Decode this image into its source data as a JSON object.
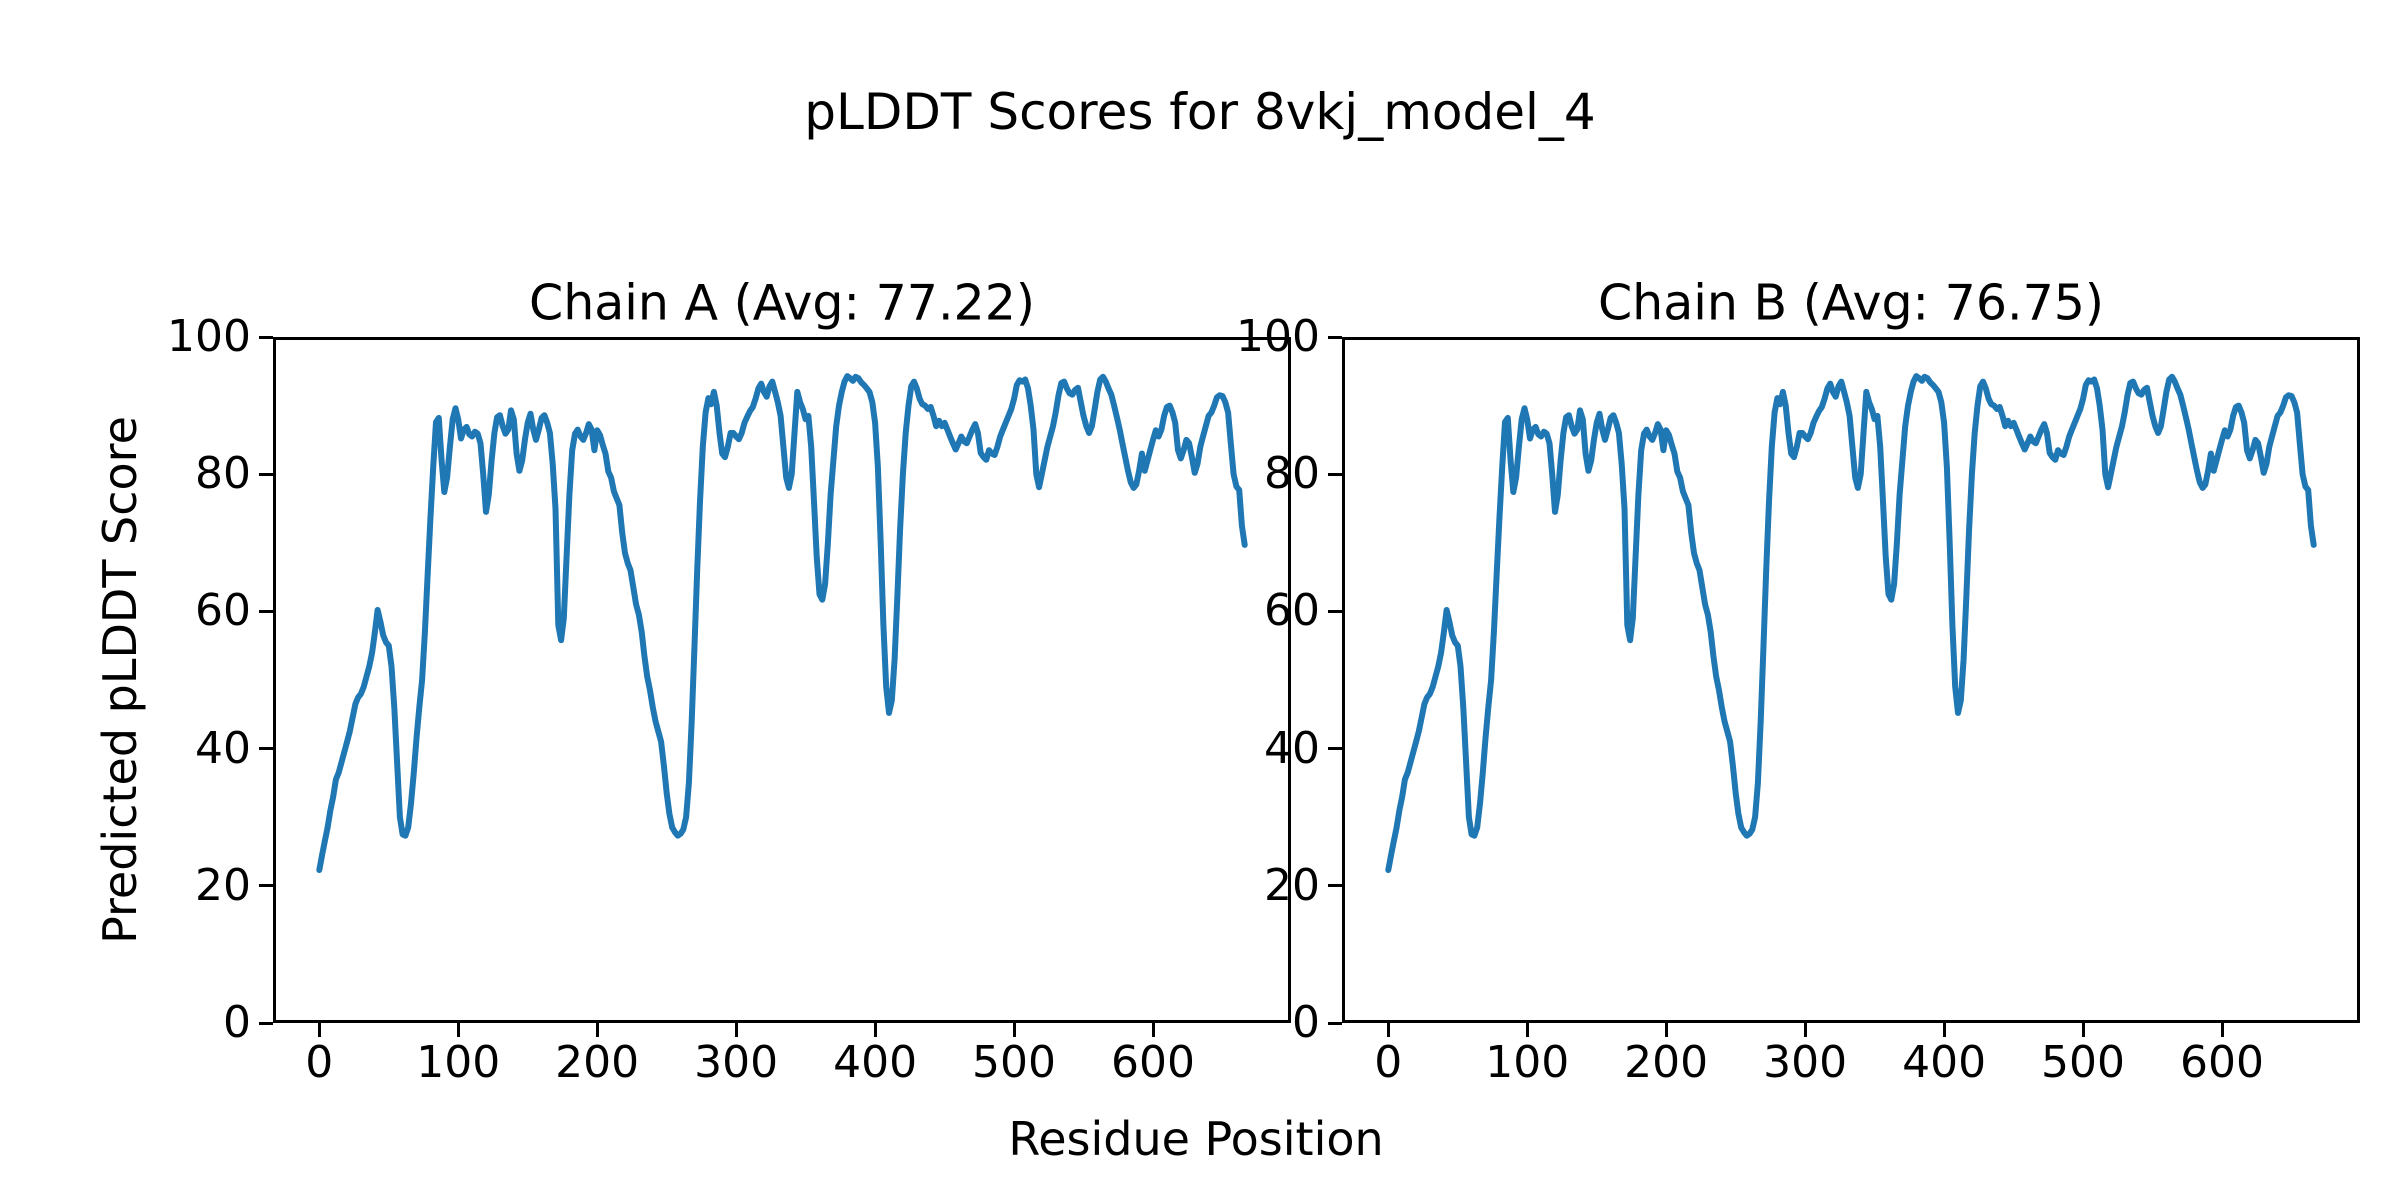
{
  "figure": {
    "title": "pLDDT Scores for 8vkj_model_4",
    "xlabel": "Residue Position",
    "ylabel": "Predicted pLDDT Score",
    "background": "#ffffff",
    "line_color": "#1f77b4",
    "spine_color": "#000000"
  },
  "chart_data": [
    {
      "type": "line",
      "title": "Chain A (Avg: 77.22)",
      "chain": "A",
      "avg_plddt": 77.22,
      "xlabel": "Residue Position",
      "ylabel": "Predicted pLDDT Score",
      "xlim": [
        -33.3,
        699.3
      ],
      "ylim": [
        0,
        100
      ],
      "xticks": [
        0,
        100,
        200,
        300,
        400,
        500,
        600
      ],
      "yticks": [
        0,
        20,
        40,
        60,
        80,
        100
      ],
      "grid": false,
      "legend": null,
      "line_color": "#1f77b4",
      "x_start": 0,
      "x_step": 2,
      "y": [
        22.3,
        24.5,
        26.5,
        28.5,
        31,
        33,
        35.5,
        36.5,
        38,
        39.5,
        41,
        42.5,
        44.5,
        46.5,
        47.5,
        48,
        49,
        50.5,
        52,
        54,
        57,
        60.2,
        58.5,
        56.5,
        55.5,
        55,
        52,
        46,
        38,
        30,
        27.5,
        27.3,
        28.5,
        32,
        36.5,
        41.5,
        46,
        50,
        57,
        65.5,
        73.5,
        81,
        87.6,
        88.2,
        82,
        77.4,
        79.5,
        84,
        88,
        89.6,
        88,
        85.2,
        86.5,
        86.9,
        85.8,
        85.5,
        86.2,
        85.9,
        84.5,
        80,
        74.5,
        77,
        82,
        86,
        88.3,
        88.6,
        87,
        85.9,
        86.5,
        89.3,
        88,
        83,
        80.5,
        82,
        85,
        87.5,
        88.8,
        86.5,
        85,
        86.5,
        88.2,
        88.6,
        87.5,
        86,
        81.5,
        75,
        58,
        55.8,
        59,
        68,
        77,
        83.5,
        85.9,
        86.5,
        85.5,
        85,
        86,
        87.3,
        86.5,
        83.5,
        86.4,
        85.7,
        84.3,
        83,
        80.4,
        79.5,
        77.5,
        76.5,
        75.5,
        71.5,
        68.5,
        67,
        66,
        63.5,
        61,
        59.5,
        57,
        53.5,
        50.5,
        48.5,
        46,
        44,
        42.5,
        41,
        37.5,
        33.5,
        30.5,
        28.5,
        27.8,
        27.3,
        27.6,
        28.2,
        30,
        35,
        44,
        55,
        66,
        76,
        84,
        89,
        91.1,
        90.2,
        92,
        90,
        86,
        83,
        82.5,
        84,
        86,
        86,
        85.5,
        85.1,
        86,
        87.5,
        88.4,
        89.2,
        89.8,
        91,
        92.5,
        93.2,
        92,
        91.3,
        92.8,
        93.5,
        92,
        90.5,
        88.5,
        84,
        79.5,
        78,
        80,
        86,
        92,
        90.5,
        89.5,
        88,
        88.5,
        84,
        76,
        68,
        62.5,
        61.7,
        64,
        70,
        77,
        82,
        87,
        90,
        92,
        93.5,
        94.3,
        94,
        93.6,
        94.2,
        94,
        93.4,
        93,
        92.5,
        92,
        90.5,
        87.5,
        81,
        70,
        58,
        49,
        45.2,
        47,
        53,
        62,
        72,
        80,
        86,
        90,
        92.8,
        93.5,
        92.5,
        91,
        90.2,
        90,
        89.5,
        89.8,
        88.5,
        87,
        87.8,
        87,
        87.5,
        86.5,
        85.5,
        84.5,
        83.6,
        84.5,
        85.5,
        84.8,
        84.5,
        85.5,
        86.5,
        87.3,
        86,
        83.1,
        82.5,
        82.1,
        83.5,
        83,
        82.8,
        84,
        85.5,
        86.5,
        87.5,
        88.5,
        89.5,
        91,
        93,
        93.7,
        93.5,
        93.8,
        92.5,
        90,
        86.5,
        80,
        78.1,
        80,
        82,
        84,
        85.5,
        87,
        89,
        91.5,
        93.3,
        93.5,
        92.5,
        91.8,
        91.6,
        92.3,
        92.6,
        90.5,
        88.5,
        87,
        86,
        87,
        89.5,
        92,
        93.8,
        94.2,
        93.5,
        92.5,
        91.6,
        90,
        88.3,
        86.5,
        84.5,
        82.5,
        80.5,
        78.8,
        78,
        78.5,
        80.5,
        83,
        80.5,
        82,
        83.5,
        85,
        86.4,
        85.5,
        86.5,
        88.5,
        89.8,
        90,
        89,
        87.5,
        83.5,
        82.3,
        83.5,
        85,
        84.5,
        82.5,
        80.2,
        81.5,
        84,
        85.5,
        87,
        88.5,
        89,
        90,
        91.2,
        91.5,
        91.4,
        90.5,
        89,
        84.5,
        80,
        78.2,
        77.7,
        72.5,
        69.7
      ]
    },
    {
      "type": "line",
      "title": "Chain B (Avg: 76.75)",
      "chain": "B",
      "avg_plddt": 76.75,
      "xlabel": "Residue Position",
      "ylabel": "Predicted pLDDT Score",
      "xlim": [
        -33.3,
        699.3
      ],
      "ylim": [
        0,
        100
      ],
      "xticks": [
        0,
        100,
        200,
        300,
        400,
        500,
        600
      ],
      "yticks": [
        0,
        20,
        40,
        60,
        80,
        100
      ],
      "grid": false,
      "legend": null,
      "line_color": "#1f77b4",
      "x_start": 0,
      "x_step": 2,
      "y": [
        22.3,
        24.5,
        26.5,
        28.5,
        31,
        33,
        35.5,
        36.5,
        38,
        39.5,
        41,
        42.5,
        44.5,
        46.5,
        47.5,
        48,
        49,
        50.5,
        52,
        54,
        57,
        60.2,
        58.5,
        56.5,
        55.5,
        55,
        52,
        46,
        38,
        30,
        27.5,
        27.3,
        28.5,
        32,
        36.5,
        41.5,
        46,
        50,
        57,
        65.5,
        73.5,
        81,
        87.6,
        88.2,
        82,
        77.4,
        79.5,
        84,
        88,
        89.6,
        88,
        85.2,
        86.5,
        86.9,
        85.8,
        85.5,
        86.2,
        85.9,
        84.5,
        80,
        74.5,
        77,
        82,
        86,
        88.3,
        88.6,
        87,
        85.9,
        86.5,
        89.3,
        88,
        83,
        80.5,
        82,
        85,
        87.5,
        88.8,
        86.5,
        85,
        86.5,
        88.2,
        88.6,
        87.5,
        86,
        81.5,
        75,
        58,
        55.8,
        59,
        68,
        77,
        83.5,
        85.9,
        86.5,
        85.5,
        85,
        86,
        87.3,
        86.5,
        83.5,
        86.4,
        85.7,
        84.3,
        83,
        80.4,
        79.5,
        77.5,
        76.5,
        75.5,
        71.5,
        68.5,
        67,
        66,
        63.5,
        61,
        59.5,
        57,
        53.5,
        50.5,
        48.5,
        46,
        44,
        42.5,
        41,
        37.5,
        33.5,
        30.5,
        28.5,
        27.8,
        27.3,
        27.6,
        28.2,
        30,
        35,
        44,
        55,
        66,
        76,
        84,
        89,
        91.1,
        90.2,
        92,
        90,
        86,
        83,
        82.5,
        84,
        86,
        86,
        85.5,
        85.1,
        86,
        87.5,
        88.4,
        89.2,
        89.8,
        91,
        92.5,
        93.2,
        92,
        91.3,
        92.8,
        93.5,
        92,
        90.5,
        88.5,
        84,
        79.5,
        78,
        80,
        86,
        92,
        90.5,
        89.5,
        88,
        88.5,
        84,
        76,
        68,
        62.5,
        61.7,
        64,
        70,
        77,
        82,
        87,
        90,
        92,
        93.5,
        94.3,
        94,
        93.6,
        94.2,
        94,
        93.4,
        93,
        92.5,
        92,
        90.5,
        87.5,
        81,
        70,
        58,
        49,
        45.2,
        47,
        53,
        62,
        72,
        80,
        86,
        90,
        92.8,
        93.5,
        92.5,
        91,
        90.2,
        90,
        89.5,
        89.8,
        88.5,
        87,
        87.8,
        87,
        87.5,
        86.5,
        85.5,
        84.5,
        83.6,
        84.5,
        85.5,
        84.8,
        84.5,
        85.5,
        86.5,
        87.3,
        86,
        83.1,
        82.5,
        82.1,
        83.5,
        83,
        82.8,
        84,
        85.5,
        86.5,
        87.5,
        88.5,
        89.5,
        91,
        93,
        93.7,
        93.5,
        93.8,
        92.5,
        90,
        86.5,
        80,
        78.1,
        80,
        82,
        84,
        85.5,
        87,
        89,
        91.5,
        93.3,
        93.5,
        92.5,
        91.8,
        91.6,
        92.3,
        92.6,
        90.5,
        88.5,
        87,
        86,
        87,
        89.5,
        92,
        93.8,
        94.2,
        93.5,
        92.5,
        91.6,
        90,
        88.3,
        86.5,
        84.5,
        82.5,
        80.5,
        78.8,
        78,
        78.5,
        80.5,
        83,
        80.5,
        82,
        83.5,
        85,
        86.4,
        85.5,
        86.5,
        88.5,
        89.8,
        90,
        89,
        87.5,
        83.5,
        82.3,
        83.5,
        85,
        84.5,
        82.5,
        80.2,
        81.5,
        84,
        85.5,
        87,
        88.5,
        89,
        90,
        91.2,
        91.5,
        91.4,
        90.5,
        89,
        84.5,
        80,
        78.2,
        77.7,
        72.5,
        69.7
      ]
    }
  ]
}
